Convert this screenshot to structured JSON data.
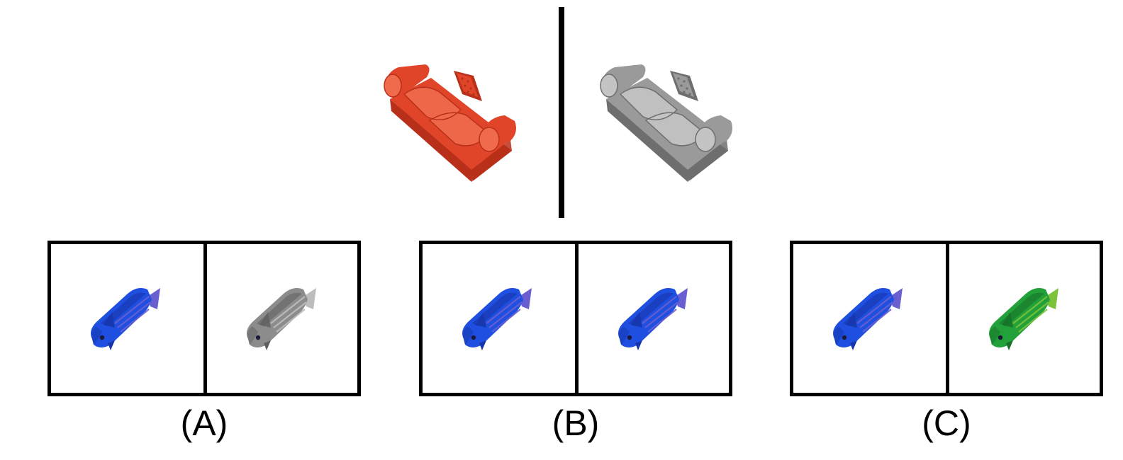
{
  "reference": {
    "source_object": {
      "icon": "sofa-icon",
      "color": "#e0452a",
      "shade": "#b8301a",
      "highlight": "#f06a4c"
    },
    "target_object": {
      "icon": "sofa-icon",
      "color": "#9a9a9a",
      "shade": "#6e6e6e",
      "highlight": "#c4c4c4"
    }
  },
  "options": [
    {
      "label": "(A)",
      "left": {
        "icon": "fish-icon",
        "color": "#1f4fe0",
        "shade": "#1535a8",
        "fin": "#6a5fd0"
      },
      "right": {
        "icon": "fish-icon",
        "color": "#8c8c8c",
        "shade": "#5f5f5f",
        "fin": "#bdbdbd"
      }
    },
    {
      "label": "(B)",
      "left": {
        "icon": "fish-icon",
        "color": "#1f4fe0",
        "shade": "#1535a8",
        "fin": "#6a5fd0"
      },
      "right": {
        "icon": "fish-icon",
        "color": "#1f4fe0",
        "shade": "#1535a8",
        "fin": "#6a5fd0"
      }
    },
    {
      "label": "(C)",
      "left": {
        "icon": "fish-icon",
        "color": "#1f4fe0",
        "shade": "#1535a8",
        "fin": "#6a5fd0"
      },
      "right": {
        "icon": "fish-icon",
        "color": "#22a03a",
        "shade": "#157028",
        "fin": "#7cc23a"
      }
    }
  ]
}
